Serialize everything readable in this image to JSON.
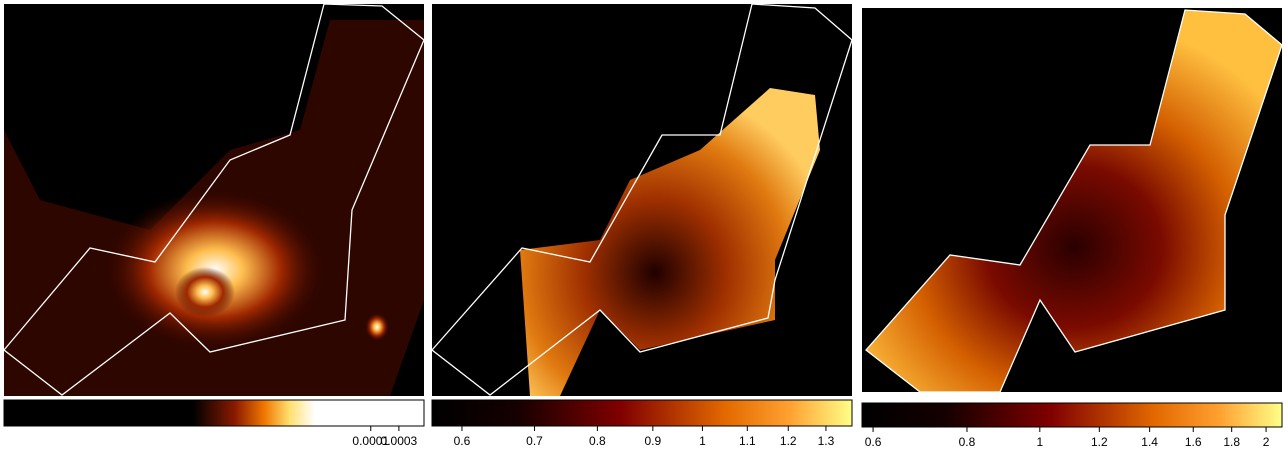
{
  "chart_data": [
    {
      "type": "heatmap",
      "xlim": [
        6e-11,
        0.0008
      ],
      "xticks": [
        0.0001,
        0.0003
      ],
      "log_scale": true
    },
    {
      "type": "heatmap",
      "xlim": [
        0.563,
        1.374
      ],
      "xticks": [
        0.6,
        0.7,
        0.8,
        0.9,
        1,
        1.1,
        1.2,
        1.3
      ],
      "log_scale": true
    },
    {
      "type": "heatmap",
      "xlim": [
        0.58,
        2.1
      ],
      "xticks": [
        0.6,
        0.8,
        1,
        1.2,
        1.4,
        1.6,
        1.8,
        2
      ],
      "log_scale": true
    }
  ]
}
